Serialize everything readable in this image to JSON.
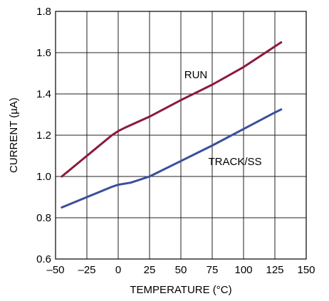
{
  "chart_data": {
    "type": "line",
    "title": "",
    "xlabel": "TEMPERATURE (°C)",
    "ylabel": "CURRENT (µA)",
    "xlim": [
      -50,
      150
    ],
    "ylim": [
      0.6,
      1.8
    ],
    "x_ticks": [
      -50,
      -25,
      0,
      25,
      50,
      75,
      100,
      125,
      150
    ],
    "x_tick_labels": [
      "–50",
      "–25",
      "0",
      "25",
      "50",
      "75",
      "100",
      "125",
      "150"
    ],
    "y_ticks": [
      0.6,
      0.8,
      1.0,
      1.2,
      1.4,
      1.6,
      1.8
    ],
    "y_tick_labels": [
      "0.6",
      "0.8",
      "1.0",
      "1.2",
      "1.4",
      "1.6",
      "1.8"
    ],
    "grid": true,
    "legend": "none",
    "series": [
      {
        "name": "RUN",
        "color": "#8b1a3a",
        "x": [
          -45,
          -25,
          -5,
          0,
          5,
          25,
          50,
          75,
          100,
          125,
          130
        ],
        "y": [
          1.0,
          1.1,
          1.2,
          1.22,
          1.235,
          1.29,
          1.37,
          1.445,
          1.53,
          1.63,
          1.65
        ]
      },
      {
        "name": "TRACK/SS",
        "color": "#3a4f9c",
        "x": [
          -45,
          -25,
          -5,
          0,
          10,
          25,
          50,
          75,
          100,
          125,
          130
        ],
        "y": [
          0.85,
          0.9,
          0.95,
          0.96,
          0.97,
          1.0,
          1.075,
          1.15,
          1.23,
          1.31,
          1.325
        ]
      }
    ]
  }
}
